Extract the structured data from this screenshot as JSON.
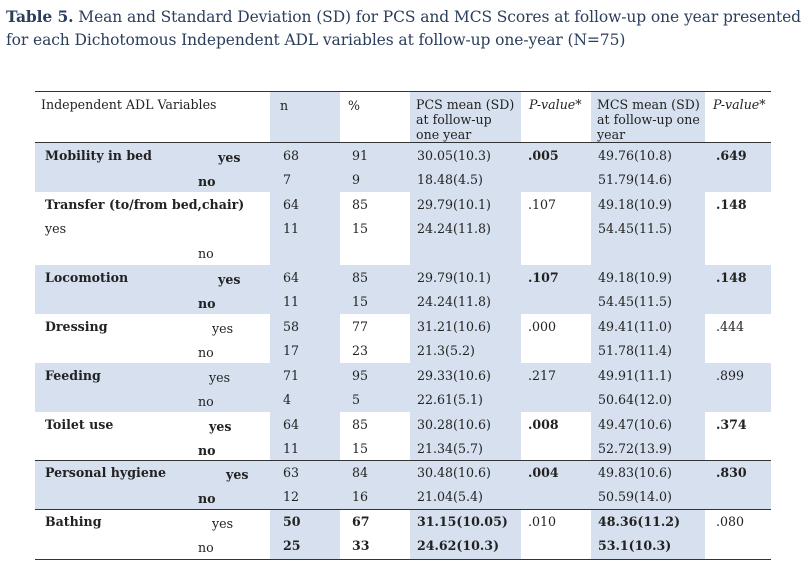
{
  "caption": {
    "label": "Table 5.",
    "line1": "Mean and Standard Deviation (SD) for PCS and MCS Scores at follow-up one year presented",
    "line2": "for each Dichotomous Independent ADL variables at follow-up one-year (N=75)"
  },
  "header": {
    "var": "Independent ADL Variables",
    "n": "n",
    "pct": "%",
    "pcs": [
      "PCS mean (SD)",
      "at follow-up",
      "one year"
    ],
    "pcs_p": "P-value*",
    "mcs": [
      "MCS mean (SD)",
      "at follow-up one",
      "year"
    ],
    "mcs_p": "P-value*"
  },
  "rows": [
    {
      "label": "Mobility in bed",
      "a": {
        "g": "yes",
        "n": "68",
        "pct": "91",
        "pcs": "30.05(10.3)",
        "mcs": "49.76(10.8)"
      },
      "b": {
        "g": "no",
        "n": "7",
        "pct": "9",
        "pcs": "18.48(4.5)",
        "mcs": "51.79(14.6)"
      },
      "pcs_p": ".005",
      "mcs_p": ".649"
    },
    {
      "label": "Transfer (to/from bed,chair)",
      "a": {
        "g": "yes",
        "n": "64",
        "pct": "85",
        "pcs": "29.79(10.1)",
        "mcs": "49.18(10.9)"
      },
      "b": {
        "g": "no",
        "n": "11",
        "pct": "15",
        "pcs": "24.24(11.8)",
        "mcs": "54.45(11.5)"
      },
      "pcs_p": ".107",
      "mcs_p": ".148"
    },
    {
      "label": "Locomotion",
      "a": {
        "g": "yes",
        "n": "64",
        "pct": "85",
        "pcs": "29.79(10.1)",
        "mcs": "49.18(10.9)"
      },
      "b": {
        "g": "no",
        "n": "11",
        "pct": "15",
        "pcs": "24.24(11.8)",
        "mcs": "54.45(11.5)"
      },
      "pcs_p": ".107",
      "mcs_p": ".148"
    },
    {
      "label": "Dressing",
      "a": {
        "g": "yes",
        "n": "58",
        "pct": "77",
        "pcs": "31.21(10.6)",
        "mcs": "49.41(11.0)"
      },
      "b": {
        "g": "no",
        "n": "17",
        "pct": "23",
        "pcs": "21.3(5.2)",
        "mcs": "51.78(11.4)"
      },
      "pcs_p": ".000",
      "mcs_p": ".444"
    },
    {
      "label": "Feeding",
      "a": {
        "g": "yes",
        "n": "71",
        "pct": "95",
        "pcs": "29.33(10.6)",
        "mcs": "49.91(11.1)"
      },
      "b": {
        "g": "no",
        "n": "4",
        "pct": "5",
        "pcs": "22.61(5.1)",
        "mcs": "50.64(12.0)"
      },
      "pcs_p": ".217",
      "mcs_p": ".899"
    },
    {
      "label": "Toilet use",
      "a": {
        "g": "yes",
        "n": "64",
        "pct": "85",
        "pcs": "30.28(10.6)",
        "mcs": "49.47(10.6)"
      },
      "b": {
        "g": "no",
        "n": "11",
        "pct": "15",
        "pcs": "21.34(5.7)",
        "mcs": "52.72(13.9)"
      },
      "pcs_p": ".008",
      "mcs_p": ".374"
    },
    {
      "label": "Personal hygiene",
      "a": {
        "g": "yes",
        "n": "63",
        "pct": "84",
        "pcs": "30.48(10.6)",
        "mcs": "49.83(10.6)"
      },
      "b": {
        "g": "no",
        "n": "12",
        "pct": "16",
        "pcs": "21.04(5.4)",
        "mcs": "50.59(14.0)"
      },
      "pcs_p": ".004",
      "mcs_p": ".830"
    },
    {
      "label": "Bathing",
      "a": {
        "g": "yes",
        "n": "50",
        "pct": "67",
        "pcs": "31.15(10.05)",
        "mcs": "48.36(11.2)"
      },
      "b": {
        "g": "no",
        "n": "25",
        "pct": "33",
        "pcs": "24.62(10.3)",
        "mcs": "53.1(10.3)"
      },
      "pcs_p": ".010",
      "mcs_p": ".080"
    }
  ]
}
